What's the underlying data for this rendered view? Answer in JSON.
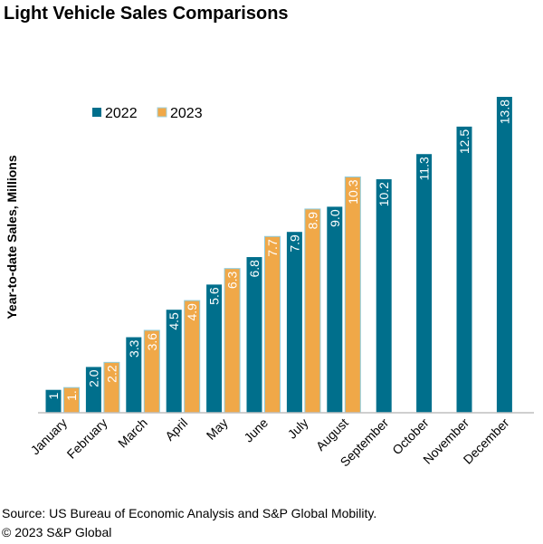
{
  "chart_data": {
    "type": "bar",
    "title": "Light Vehicle Sales Comparisons",
    "ylabel": "Year-to-date Sales, Millions",
    "xlabel": "",
    "ylim": [
      0,
      13.8
    ],
    "grid": false,
    "legend_position": "top-left",
    "categories": [
      "January",
      "February",
      "March",
      "April",
      "May",
      "June",
      "July",
      "August",
      "September",
      "October",
      "November",
      "December"
    ],
    "series": [
      {
        "name": "2022",
        "color": "#006F8C",
        "values": [
          1.0,
          2.0,
          3.3,
          4.5,
          5.6,
          6.8,
          7.9,
          9.0,
          10.2,
          11.3,
          12.5,
          13.8
        ],
        "labels": [
          "1",
          "2.0",
          "3.3",
          "4.5",
          "5.6",
          "6.8",
          "7.9",
          "9.0",
          "10.2",
          "11.3",
          "12.5",
          "13.8"
        ]
      },
      {
        "name": "2023",
        "color": "#F0A848",
        "values": [
          1.1,
          2.2,
          3.6,
          4.9,
          6.3,
          7.7,
          8.9,
          10.3,
          null,
          null,
          null,
          null
        ],
        "labels": [
          "1.",
          "2.2",
          "3.6",
          "4.9",
          "6.3",
          "7.7",
          "8.9",
          "10.3",
          null,
          null,
          null,
          null
        ]
      }
    ]
  },
  "footer": {
    "source": "Source: US Bureau of Economic Analysis and S&P Global Mobility.",
    "copyright": "© 2023 S&P Global"
  }
}
